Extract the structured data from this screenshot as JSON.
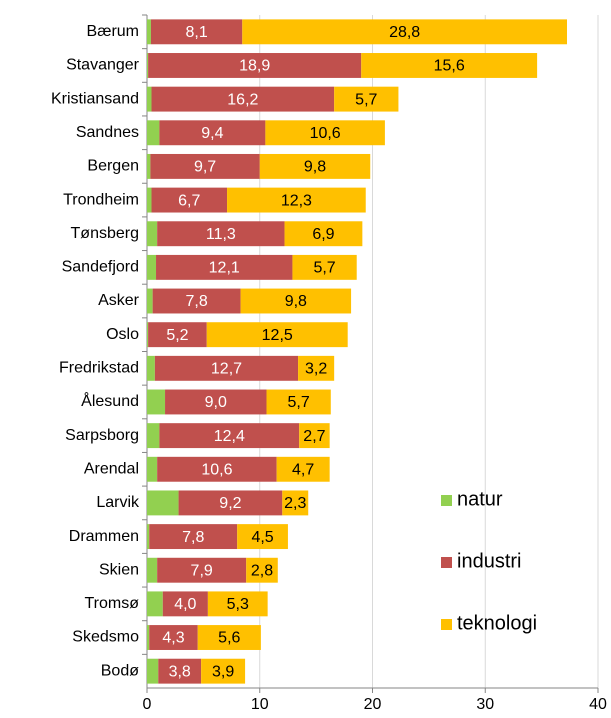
{
  "chart_data": {
    "type": "stacked-barh",
    "categories": [
      "Bærum",
      "Stavanger",
      "Kristiansand",
      "Sandnes",
      "Bergen",
      "Trondheim",
      "Tønsberg",
      "Sandefjord",
      "Asker",
      "Oslo",
      "Fredrikstad",
      "Ålesund",
      "Sarpsborg",
      "Arendal",
      "Larvik",
      "Drammen",
      "Skien",
      "Tromsø",
      "Skedsmo",
      "Bodø"
    ],
    "series": [
      {
        "name": "natur",
        "color": "#92d050",
        "values": [
          0.35,
          0.1,
          0.4,
          1.1,
          0.3,
          0.4,
          0.9,
          0.8,
          0.5,
          0.1,
          0.7,
          1.6,
          1.1,
          0.9,
          2.8,
          0.2,
          0.9,
          1.4,
          0.2,
          1.0
        ]
      },
      {
        "name": "industri",
        "color": "#c0504d",
        "values": [
          8.1,
          18.9,
          16.2,
          9.4,
          9.7,
          6.7,
          11.3,
          12.1,
          7.8,
          5.2,
          12.7,
          9.0,
          12.4,
          10.6,
          9.2,
          7.8,
          7.9,
          4.0,
          4.3,
          3.8
        ],
        "value_labels": [
          "8,1",
          "18,9",
          "16,2",
          "9,4",
          "9,7",
          "6,7",
          "11,3",
          "12,1",
          "7,8",
          "5,2",
          "12,7",
          "9,0",
          "12,4",
          "10,6",
          "9,2",
          "7,8",
          "7,9",
          "4,0",
          "4,3",
          "3,8"
        ]
      },
      {
        "name": "teknologi",
        "color": "#ffc000",
        "values": [
          28.8,
          15.6,
          5.7,
          10.6,
          9.8,
          12.3,
          6.9,
          5.7,
          9.8,
          12.5,
          3.2,
          5.7,
          2.7,
          4.7,
          2.3,
          4.5,
          2.8,
          5.3,
          5.6,
          3.9
        ],
        "value_labels": [
          "28,8",
          "15,6",
          "5,7",
          "10,6",
          "9,8",
          "12,3",
          "6,9",
          "5,7",
          "9,8",
          "12,5",
          "3,2",
          "5,7",
          "2,7",
          "4,7",
          "2,3",
          "4,5",
          "2,8",
          "5,3",
          "5,6",
          "3,9"
        ]
      }
    ],
    "xlim": [
      0,
      40
    ],
    "xticks": [
      0,
      10,
      20,
      30,
      40
    ],
    "grid": true,
    "legend": "lower right"
  }
}
